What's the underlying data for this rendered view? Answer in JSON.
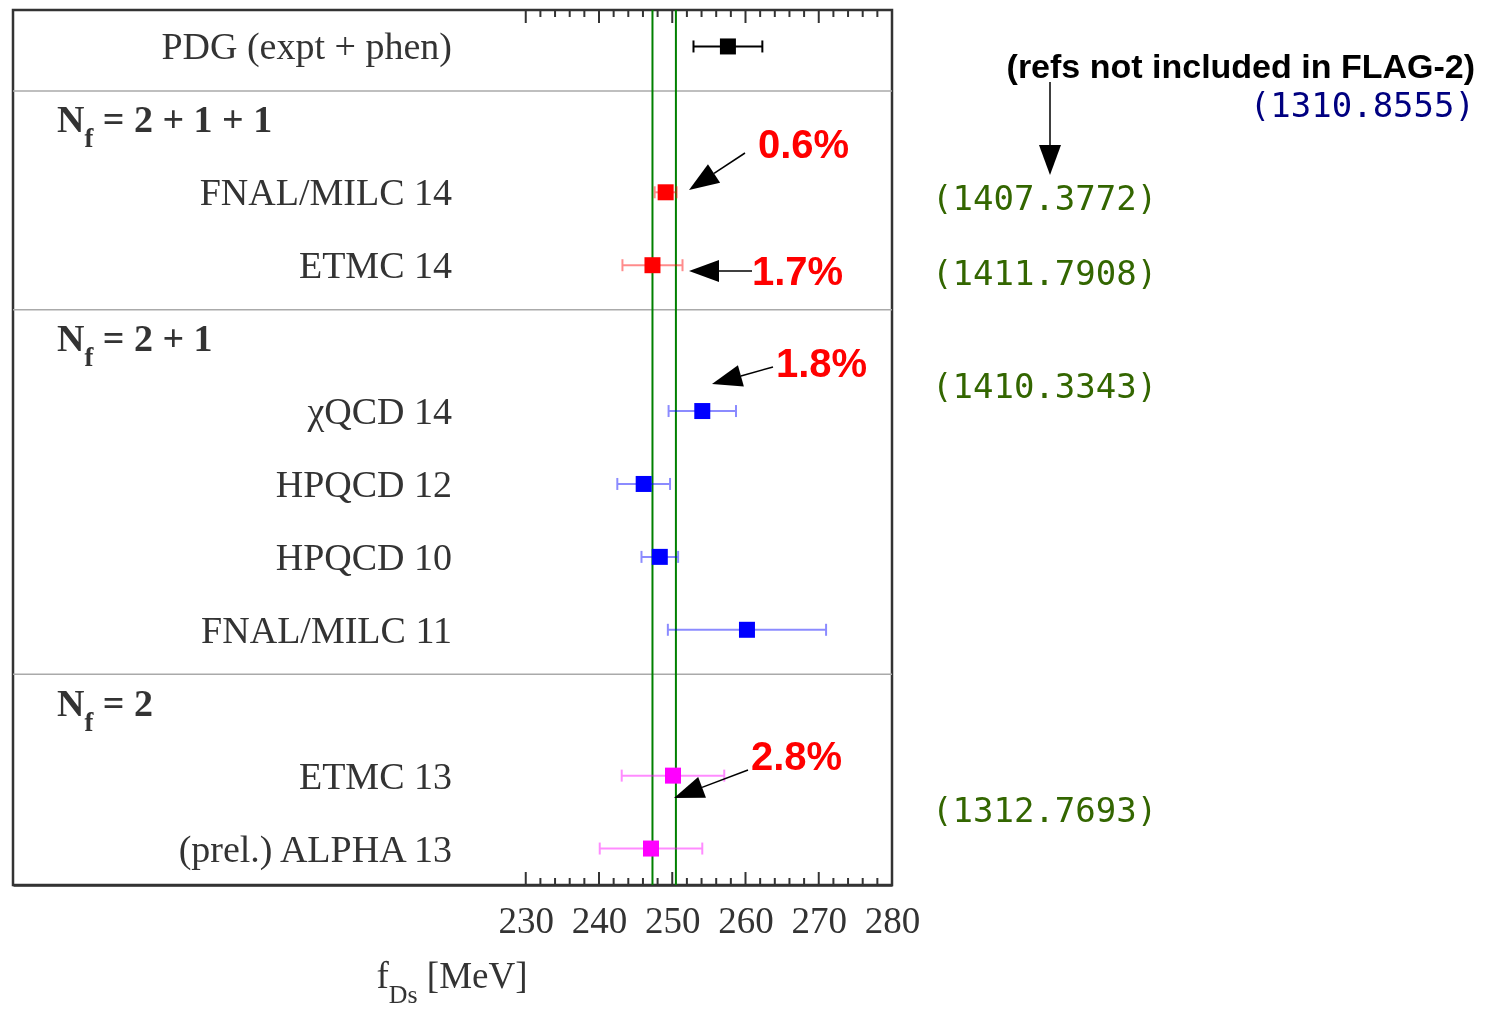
{
  "chart_data": {
    "type": "scatter",
    "orientation": "horizontal",
    "marker": "square",
    "xlabel": "f$_{Ds}$ [MeV]",
    "categories": [
      "PDG (expt + phen)",
      "N$_{f}$ = 2 + 1 + 1",
      "FNAL/MILC 14",
      "ETMC 14",
      "N$_{f}$ = 2 + 1",
      "χQCD 14",
      "HPQCD 12",
      "HPQCD 10",
      "FNAL/MILC 11",
      "N$_{f}$ = 2",
      "ETMC 13",
      "(prel.) ALPHA 13"
    ],
    "series": [
      {
        "color": "#000000",
        "values": [
          257.6,
          null,
          null,
          null,
          null,
          null,
          null,
          null,
          null,
          null,
          null,
          null
        ],
        "errors": [
          4.7,
          null,
          null,
          null,
          null,
          null,
          null,
          null,
          null,
          null,
          null,
          null
        ]
      },
      {
        "color": "#ff0000",
        "values": [
          null,
          null,
          249.1,
          247.3,
          null,
          null,
          null,
          null,
          null,
          null,
          null,
          null
        ],
        "errors": [
          null,
          null,
          1.5,
          4.1,
          null,
          null,
          null,
          null,
          null,
          null,
          null,
          null
        ]
      },
      {
        "color": "#0000ff",
        "values": [
          null,
          null,
          null,
          null,
          null,
          254.1,
          246.1,
          248.3,
          260.2,
          null,
          null,
          null
        ],
        "errors": [
          null,
          null,
          null,
          null,
          null,
          4.6,
          3.6,
          2.5,
          10.8,
          null,
          null,
          null
        ]
      },
      {
        "color": "#ff00ff",
        "values": [
          null,
          null,
          null,
          null,
          null,
          null,
          null,
          null,
          null,
          null,
          250.1,
          247.1
        ],
        "errors": [
          null,
          null,
          null,
          null,
          null,
          null,
          null,
          null,
          null,
          null,
          7.0,
          7.0
        ]
      }
    ],
    "xlim": [
      160,
      280
    ],
    "xticks": [
      230,
      {
        "value": 232,
        "label": null
      },
      {
        "value": 234,
        "label": null
      },
      {
        "value": 236,
        "label": null
      },
      {
        "value": 238,
        "label": null
      },
      240,
      {
        "value": 242,
        "label": null
      },
      {
        "value": 244,
        "label": null
      },
      {
        "value": 246,
        "label": null
      },
      {
        "value": 248,
        "label": null
      },
      250,
      {
        "value": 252,
        "label": null
      },
      {
        "value": 254,
        "label": null
      },
      {
        "value": 256,
        "label": null
      },
      {
        "value": 258,
        "label": null
      },
      260,
      {
        "value": 262,
        "label": null
      },
      {
        "value": 264,
        "label": null
      },
      {
        "value": 266,
        "label": null
      },
      {
        "value": 268,
        "label": null
      },
      270,
      {
        "value": 272,
        "label": null
      },
      {
        "value": 274,
        "label": null
      },
      {
        "value": 276,
        "label": null
      },
      {
        "value": 278,
        "label": null
      },
      280
    ],
    "ref_lines": [
      {
        "axis": "x",
        "value": 247.3,
        "color": "#008000"
      },
      {
        "axis": "x",
        "value": 250.5,
        "color": "#008000"
      }
    ],
    "annotations": [
      "0.6%",
      "1.7%",
      "1.8%",
      "2.8%",
      "(refs not included in FLAG-2)",
      "(1310.8555)",
      "(1407.3772)",
      "(1411.7908)",
      "(1410.3343)",
      "(1312.7693)"
    ]
  }
}
